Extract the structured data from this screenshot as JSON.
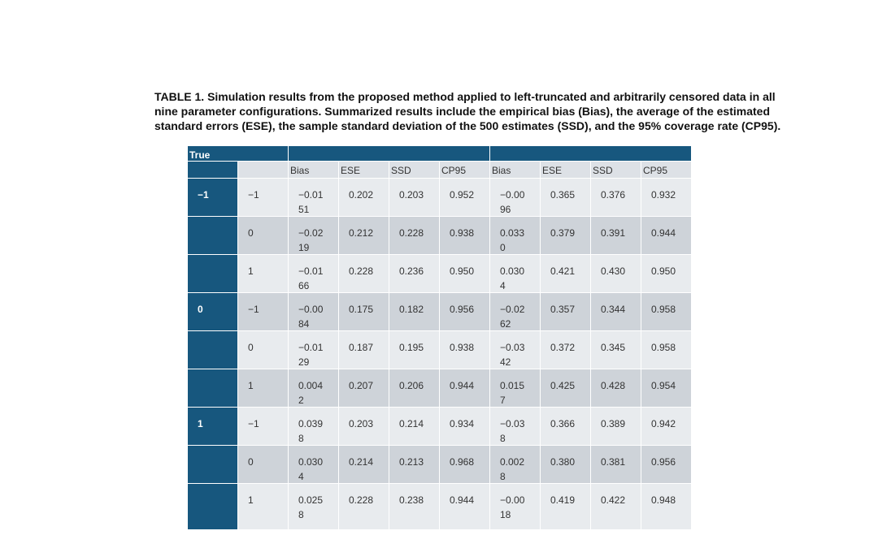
{
  "caption": [
    "TABLE 1. Simulation results from the proposed method applied to left-truncated and arbitrarily censored data in all",
    "nine parameter configurations. Summarized results include the empirical bias (Bias), the average of the estimated",
    "standard errors (ESE), the sample standard deviation of the 500 estimates (SSD), and the 95% coverage rate (CP95)."
  ],
  "table": {
    "corner": "True",
    "columns": [
      "Bias",
      "ESE",
      "SSD",
      "CP95",
      "Bias",
      "ESE",
      "SSD",
      "CP95"
    ],
    "rows": [
      {
        "group": "−1",
        "param": "−1",
        "cells": [
          "−0.0151",
          "0.202",
          "0.203",
          "0.952",
          "−0.0096",
          "0.365",
          "0.376",
          "0.932"
        ]
      },
      {
        "param": "0",
        "cells": [
          "−0.0219",
          "0.212",
          "0.228",
          "0.938",
          "0.0330",
          "0.379",
          "0.391",
          "0.944"
        ]
      },
      {
        "param": "1",
        "cells": [
          "−0.0166",
          "0.228",
          "0.236",
          "0.950",
          "0.0304",
          "0.421",
          "0.430",
          "0.950"
        ]
      },
      {
        "group": "0",
        "param": "−1",
        "cells": [
          "−0.0084",
          "0.175",
          "0.182",
          "0.956",
          "−0.0262",
          "0.357",
          "0.344",
          "0.958"
        ]
      },
      {
        "param": "0",
        "cells": [
          "−0.0129",
          "0.187",
          "0.195",
          "0.938",
          "−0.0342",
          "0.372",
          "0.345",
          "0.958"
        ]
      },
      {
        "param": "1",
        "cells": [
          "0.0042",
          "0.207",
          "0.206",
          "0.944",
          "0.0157",
          "0.425",
          "0.428",
          "0.954"
        ]
      },
      {
        "group": "1",
        "param": "−1",
        "cells": [
          "0.0398",
          "0.203",
          "0.214",
          "0.934",
          "−0.038",
          "0.366",
          "0.389",
          "0.942"
        ]
      },
      {
        "param": "0",
        "cells": [
          "0.0304",
          "0.214",
          "0.213",
          "0.968",
          "0.0028",
          "0.380",
          "0.381",
          "0.956"
        ]
      },
      {
        "param": "1",
        "cells": [
          "0.0258",
          "0.228",
          "0.238",
          "0.944",
          "−0.0018",
          "0.419",
          "0.422",
          "0.948"
        ]
      }
    ]
  }
}
